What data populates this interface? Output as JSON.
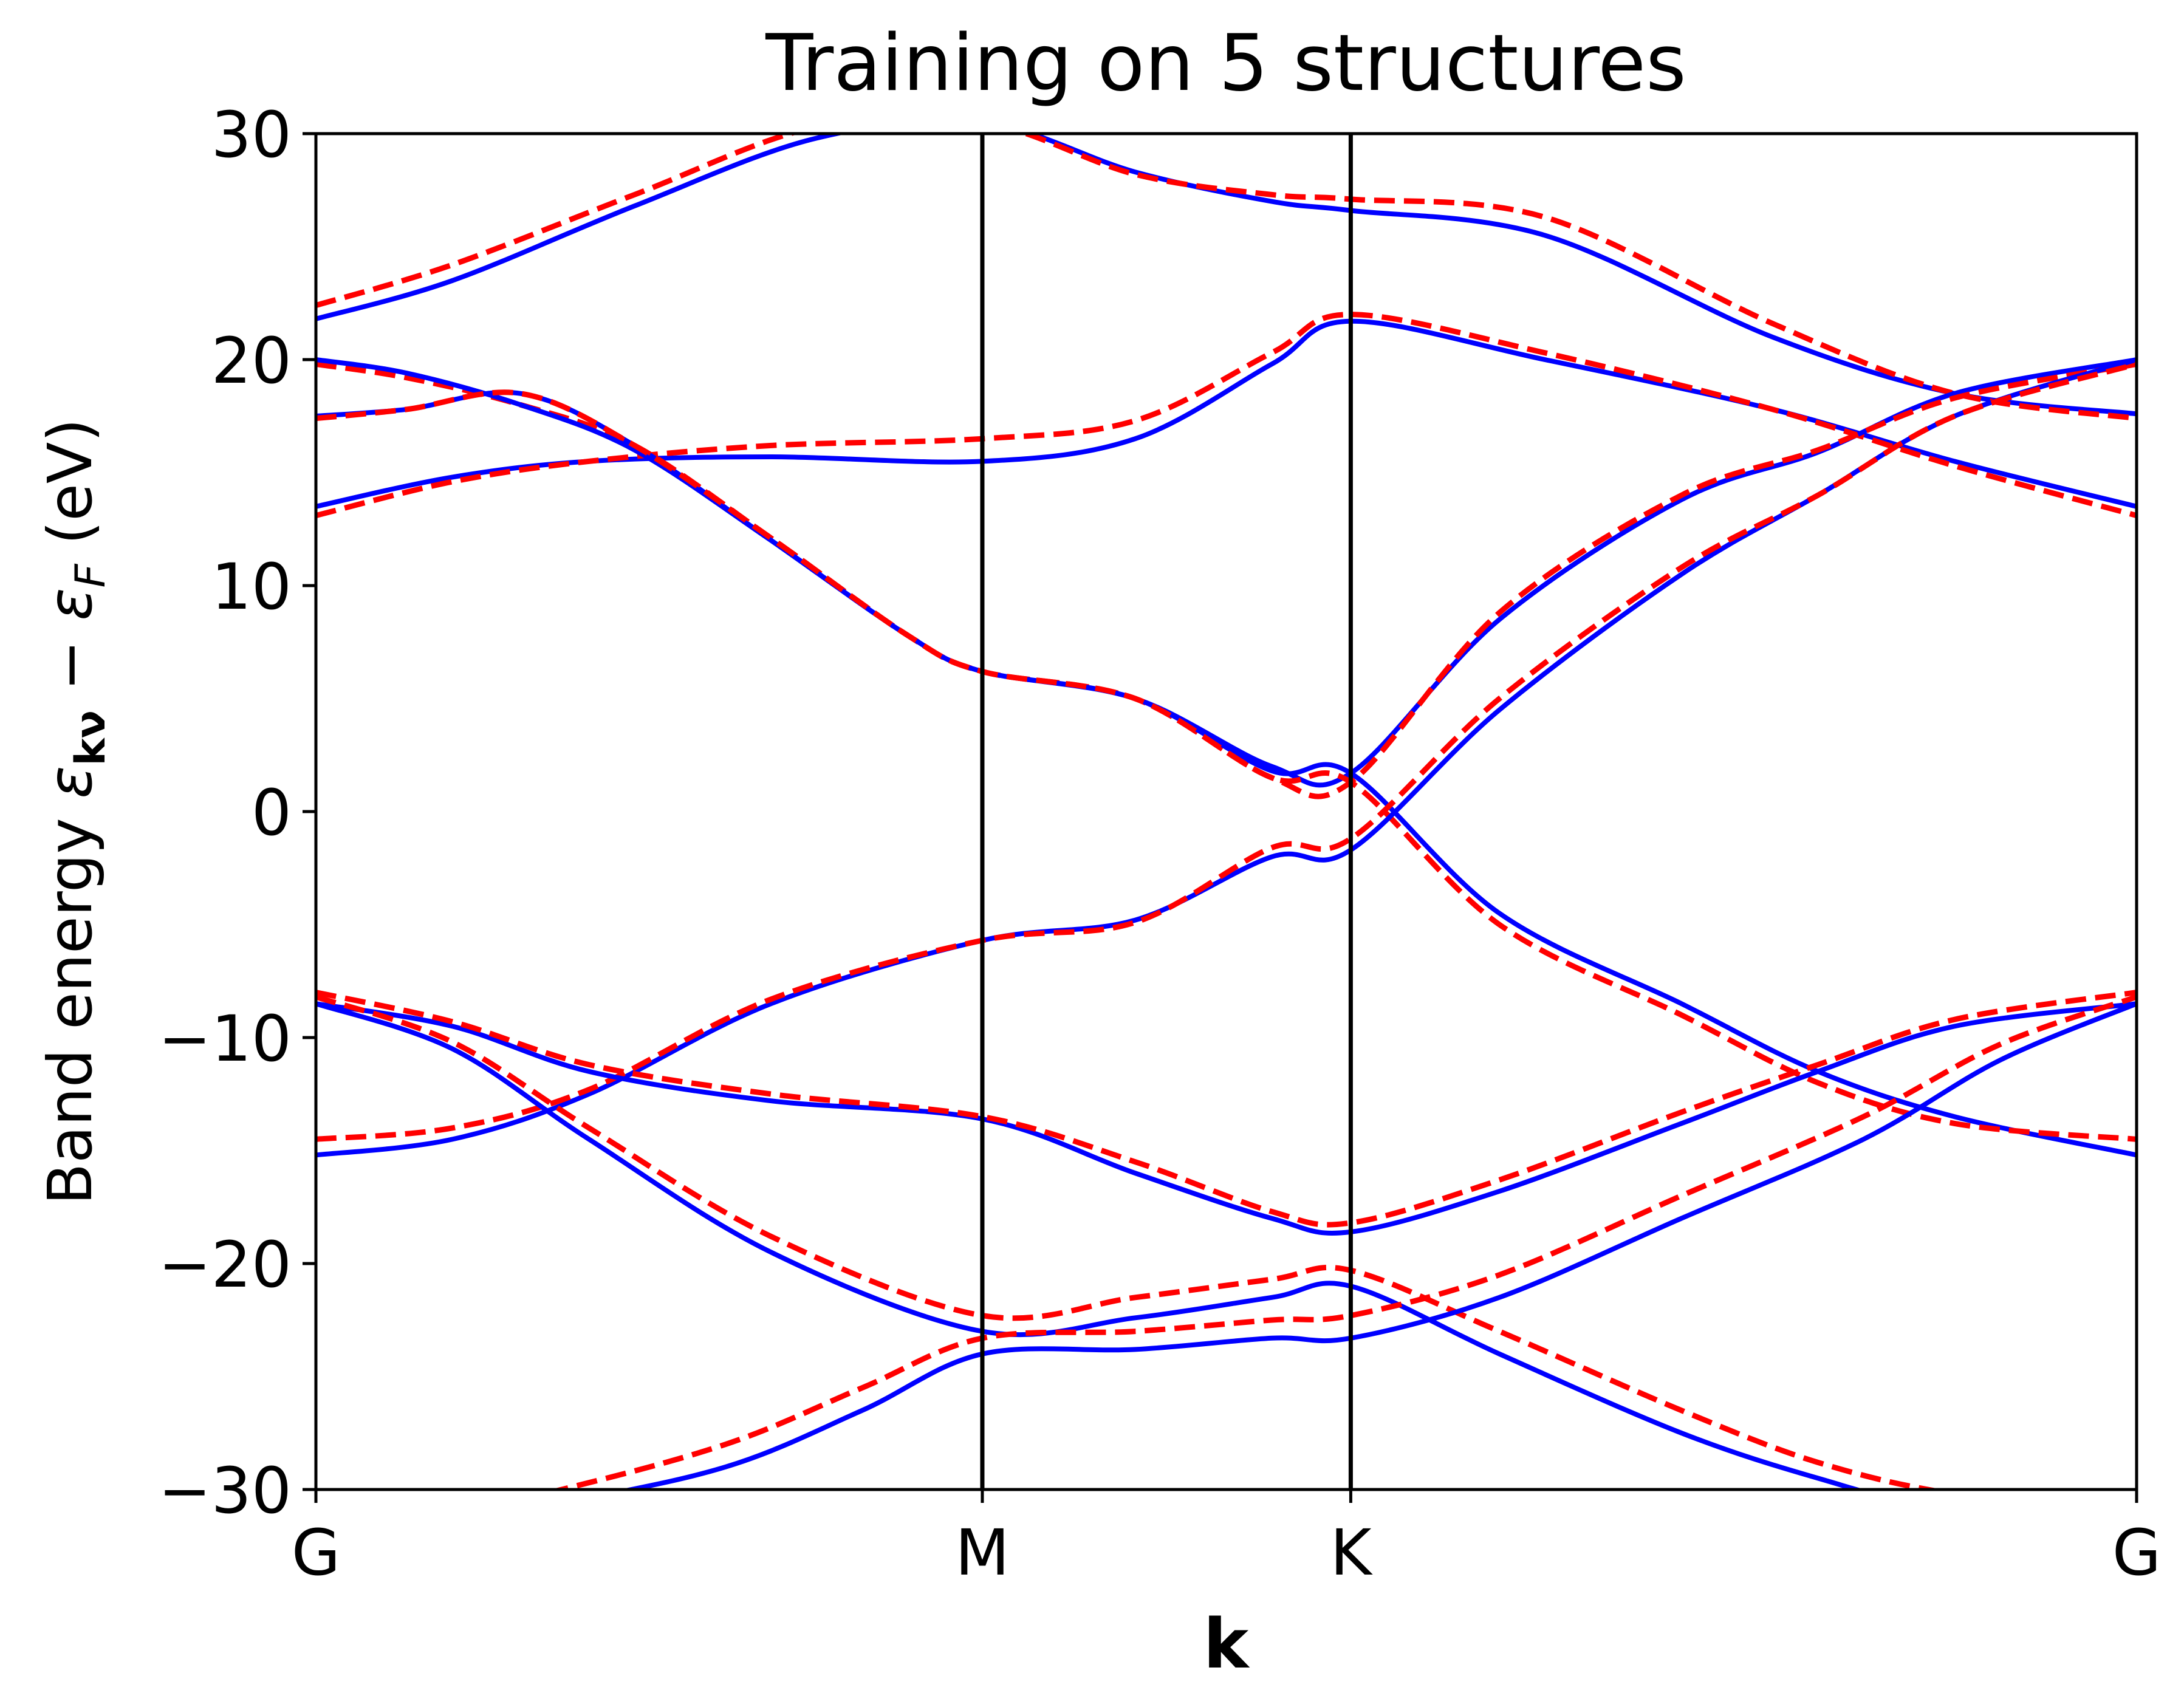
{
  "chart_data": {
    "type": "line",
    "title": "Training on 5 structures",
    "xlabel": "k",
    "ylabel": {
      "prefix": "Band energy ",
      "eps1": "ε",
      "sub1": "kν",
      "minus": " − ",
      "eps2": "ε",
      "sub2": "F",
      "suffix": " (eV)"
    },
    "xlim": [
      0,
      4.0
    ],
    "ylim": [
      -30,
      30
    ],
    "xticks": [
      {
        "value": 0.0,
        "label": "G"
      },
      {
        "value": 1.4641,
        "label": "M"
      },
      {
        "value": 2.2735,
        "label": "K"
      },
      {
        "value": 4.0,
        "label": "G"
      }
    ],
    "yticks": [
      {
        "value": 30,
        "label": "30"
      },
      {
        "value": 20,
        "label": "20"
      },
      {
        "value": 10,
        "label": "10"
      },
      {
        "value": 0,
        "label": "0"
      },
      {
        "value": -10,
        "label": "−10"
      },
      {
        "value": -20,
        "label": "−20"
      },
      {
        "value": -30,
        "label": "−30"
      }
    ],
    "vlines": [
      1.4641,
      2.2735
    ],
    "grid": false,
    "colors": {
      "reference": "#0000ff",
      "model": "#ff0000",
      "axes": "#000000"
    },
    "series": [
      {
        "style": "solid",
        "color": "#0000ff",
        "x": [
          0,
          0.3,
          0.7,
          1.1,
          1.4641,
          1.8,
          2.1,
          2.2735,
          2.7,
          3.2,
          3.6,
          4.0
        ],
        "y": [
          21.8,
          23.5,
          26.8,
          29.8,
          30.5,
          28.3,
          27.0,
          26.6,
          25.5,
          21.0,
          18.5,
          17.6
        ]
      },
      {
        "style": "dashed",
        "color": "#ff0000",
        "x": [
          0,
          0.3,
          0.7,
          1.1,
          1.4641,
          1.8,
          2.1,
          2.2735,
          2.7,
          3.2,
          3.6,
          4.0
        ],
        "y": [
          22.4,
          24.2,
          27.3,
          30.3,
          30.5,
          28.2,
          27.3,
          27.1,
          26.3,
          21.6,
          18.5,
          17.4
        ]
      },
      {
        "style": "solid",
        "color": "#0000ff",
        "x": [
          0,
          0.3,
          0.6,
          1.0,
          1.4641,
          1.8,
          2.1,
          2.2735,
          2.7,
          3.2,
          3.6,
          4.0
        ],
        "y": [
          13.5,
          14.8,
          15.5,
          15.7,
          15.5,
          16.5,
          19.8,
          21.7,
          20.0,
          17.8,
          15.5,
          13.5
        ]
      },
      {
        "style": "dashed",
        "color": "#ff0000",
        "x": [
          0,
          0.3,
          0.6,
          1.0,
          1.4641,
          1.8,
          2.1,
          2.2735,
          2.7,
          3.2,
          3.6,
          4.0
        ],
        "y": [
          13.1,
          14.6,
          15.5,
          16.2,
          16.5,
          17.3,
          20.3,
          22.0,
          20.3,
          17.8,
          15.3,
          13.1
        ]
      },
      {
        "style": "solid",
        "color": "#0000ff",
        "x": [
          0,
          0.2,
          0.45,
          0.7,
          1.0,
          1.3,
          1.4641,
          1.8,
          2.1,
          2.2735,
          2.6,
          3.0,
          3.3,
          3.6,
          4.0
        ],
        "y": [
          17.5,
          17.8,
          18.5,
          16.2,
          12.0,
          7.8,
          6.2,
          5.0,
          2.0,
          1.7,
          8.5,
          13.8,
          15.9,
          18.5,
          20.0
        ]
      },
      {
        "style": "dashed",
        "color": "#ff0000",
        "x": [
          0,
          0.2,
          0.45,
          0.7,
          1.0,
          1.3,
          1.4641,
          1.8,
          2.1,
          2.2735,
          2.6,
          3.0,
          3.3,
          3.6,
          4.0
        ],
        "y": [
          19.8,
          19.2,
          18.0,
          16.2,
          12.1,
          7.8,
          6.2,
          5.0,
          1.5,
          1.3,
          8.8,
          14.0,
          16.0,
          18.3,
          19.8
        ]
      },
      {
        "style": "solid",
        "color": "#0000ff",
        "x": [
          0,
          0.2,
          0.45,
          0.7,
          1.0,
          1.3,
          1.4641,
          1.8,
          2.1,
          2.2735,
          2.6,
          3.0,
          3.3,
          3.6,
          4.0
        ],
        "y": [
          20.0,
          19.4,
          18.0,
          16.0,
          12.0,
          7.8,
          6.2,
          5.0,
          1.8,
          1.7,
          -4.5,
          -8.5,
          -11.5,
          -13.5,
          -15.2
        ]
      },
      {
        "style": "dashed",
        "color": "#ff0000",
        "x": [
          0,
          0.2,
          0.45,
          0.7,
          1.0,
          1.3,
          1.4641,
          1.8,
          2.1,
          2.2735,
          2.6,
          3.0,
          3.3,
          3.6,
          4.0
        ],
        "y": [
          17.4,
          17.8,
          18.5,
          16.2,
          12.1,
          7.8,
          6.2,
          5.0,
          1.5,
          1.3,
          -5.0,
          -9.0,
          -12.0,
          -13.8,
          -14.5
        ]
      },
      {
        "style": "solid",
        "color": "#0000ff",
        "x": [
          0,
          0.3,
          0.6,
          1.0,
          1.4641,
          1.8,
          2.1,
          2.2735,
          2.6,
          3.0,
          3.3,
          3.6,
          4.0
        ],
        "y": [
          -15.2,
          -14.5,
          -12.5,
          -8.5,
          -5.7,
          -4.8,
          -2.0,
          -1.7,
          4.5,
          10.5,
          14.0,
          17.5,
          20.0
        ]
      },
      {
        "style": "dashed",
        "color": "#ff0000",
        "x": [
          0,
          0.3,
          0.6,
          1.0,
          1.4641,
          1.8,
          2.1,
          2.2735,
          2.6,
          3.0,
          3.3,
          3.6,
          4.0
        ],
        "y": [
          -14.5,
          -14.0,
          -12.3,
          -8.3,
          -5.7,
          -4.9,
          -1.6,
          -1.2,
          5.0,
          10.8,
          14.0,
          17.5,
          19.8
        ]
      },
      {
        "style": "solid",
        "color": "#0000ff",
        "x": [
          0,
          0.3,
          0.6,
          1.0,
          1.4641,
          1.8,
          2.1,
          2.2735,
          2.6,
          3.0,
          3.3,
          3.6,
          4.0
        ],
        "y": [
          -8.5,
          -9.5,
          -11.5,
          -12.8,
          -13.6,
          -16.0,
          -18.0,
          -18.6,
          -16.8,
          -13.8,
          -11.5,
          -9.5,
          -8.5
        ]
      },
      {
        "style": "dashed",
        "color": "#ff0000",
        "x": [
          0,
          0.3,
          0.6,
          1.0,
          1.4641,
          1.8,
          2.1,
          2.2735,
          2.6,
          3.0,
          3.3,
          3.6,
          4.0
        ],
        "y": [
          -8.0,
          -9.3,
          -11.2,
          -12.5,
          -13.5,
          -15.5,
          -17.7,
          -18.2,
          -16.3,
          -13.3,
          -11.2,
          -9.2,
          -8.0
        ]
      },
      {
        "style": "solid",
        "color": "#0000ff",
        "x": [
          0,
          0.3,
          0.6,
          1.0,
          1.4641,
          1.8,
          2.1,
          2.2735,
          2.6,
          3.0,
          3.3,
          3.6,
          4.0
        ],
        "y": [
          -8.5,
          -10.5,
          -14.5,
          -19.5,
          -23.0,
          -22.4,
          -21.5,
          -21.0,
          -24.0,
          -27.5,
          -29.5,
          -31.0,
          -31.5
        ]
      },
      {
        "style": "dashed",
        "color": "#ff0000",
        "x": [
          0,
          0.3,
          0.6,
          1.0,
          1.4641,
          1.8,
          2.1,
          2.2735,
          2.6,
          3.0,
          3.3,
          3.6,
          4.0
        ],
        "y": [
          -8.2,
          -10.2,
          -14.0,
          -18.8,
          -22.3,
          -21.5,
          -20.7,
          -20.3,
          -23.0,
          -26.5,
          -28.8,
          -30.2,
          -31.0
        ]
      },
      {
        "style": "solid",
        "color": "#0000ff",
        "x": [
          0,
          0.5,
          0.9,
          1.2,
          1.4641,
          1.8,
          2.1,
          2.2735,
          2.6,
          3.0,
          3.4,
          3.7,
          4.0
        ],
        "y": [
          -33.0,
          -30.8,
          -29.0,
          -26.5,
          -24.0,
          -23.8,
          -23.3,
          -23.3,
          -21.5,
          -18.0,
          -14.5,
          -11.0,
          -8.5
        ]
      },
      {
        "style": "dashed",
        "color": "#ff0000",
        "x": [
          0,
          0.5,
          0.9,
          1.2,
          1.4641,
          1.8,
          2.1,
          2.2735,
          2.6,
          3.0,
          3.4,
          3.7,
          4.0
        ],
        "y": [
          -32.5,
          -30.2,
          -28.0,
          -25.5,
          -23.3,
          -23.0,
          -22.5,
          -22.3,
          -20.5,
          -17.0,
          -13.5,
          -10.3,
          -8.2
        ]
      }
    ]
  }
}
